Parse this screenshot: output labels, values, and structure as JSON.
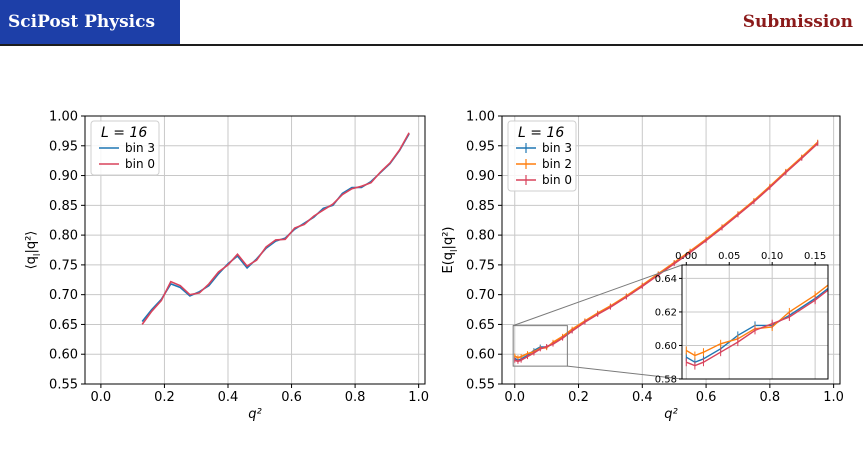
{
  "header": {
    "journal": "SciPost Physics",
    "section": "Submission"
  },
  "chart_data": [
    {
      "type": "line",
      "xlabel": "q²",
      "ylabel": "⟨q_l|q²⟩",
      "xlim": [
        -0.05,
        1.02
      ],
      "ylim": [
        0.55,
        1.0
      ],
      "xticks": [
        "0.0",
        "0.2",
        "0.4",
        "0.6",
        "0.8",
        "1.0"
      ],
      "yticks": [
        "0.55",
        "0.60",
        "0.65",
        "0.70",
        "0.75",
        "0.80",
        "0.85",
        "0.90",
        "0.95",
        "1.00"
      ],
      "grid": true,
      "legend_title": "L = 16",
      "legend_position": "top-left",
      "series": [
        {
          "name": "bin 3",
          "color": "#1f77b4",
          "x": [
            0.13,
            0.16,
            0.19,
            0.22,
            0.25,
            0.28,
            0.31,
            0.34,
            0.37,
            0.4,
            0.43,
            0.46,
            0.49,
            0.52,
            0.55,
            0.58,
            0.61,
            0.64,
            0.67,
            0.7,
            0.73,
            0.76,
            0.79,
            0.82,
            0.85,
            0.88,
            0.91,
            0.94,
            0.97
          ],
          "values": [
            0.655,
            0.675,
            0.692,
            0.718,
            0.712,
            0.698,
            0.705,
            0.715,
            0.735,
            0.752,
            0.765,
            0.745,
            0.76,
            0.778,
            0.79,
            0.795,
            0.81,
            0.82,
            0.83,
            0.845,
            0.85,
            0.87,
            0.88,
            0.88,
            0.89,
            0.905,
            0.92,
            0.942,
            0.97
          ]
        },
        {
          "name": "bin 0",
          "color": "#d9435c",
          "x": [
            0.13,
            0.16,
            0.19,
            0.22,
            0.25,
            0.28,
            0.31,
            0.34,
            0.37,
            0.4,
            0.43,
            0.46,
            0.49,
            0.52,
            0.55,
            0.58,
            0.61,
            0.64,
            0.67,
            0.7,
            0.73,
            0.76,
            0.79,
            0.82,
            0.85,
            0.88,
            0.91,
            0.94,
            0.97
          ],
          "values": [
            0.65,
            0.672,
            0.69,
            0.722,
            0.715,
            0.7,
            0.703,
            0.718,
            0.738,
            0.75,
            0.768,
            0.748,
            0.758,
            0.78,
            0.792,
            0.793,
            0.812,
            0.818,
            0.832,
            0.842,
            0.852,
            0.868,
            0.878,
            0.882,
            0.888,
            0.906,
            0.921,
            0.943,
            0.972
          ]
        }
      ]
    },
    {
      "type": "line",
      "xlabel": "q²",
      "ylabel": "E(q_l|q²)",
      "xlim": [
        -0.04,
        1.02
      ],
      "ylim": [
        0.55,
        1.0
      ],
      "xticks": [
        "0.0",
        "0.2",
        "0.4",
        "0.6",
        "0.8",
        "1.0"
      ],
      "yticks": [
        "0.55",
        "0.60",
        "0.65",
        "0.70",
        "0.75",
        "0.80",
        "0.85",
        "0.90",
        "0.95",
        "1.00"
      ],
      "grid": true,
      "legend_title": "L = 16",
      "legend_position": "top-left",
      "series": [
        {
          "name": "bin 3",
          "color": "#1f77b4",
          "x": [
            0.0,
            0.01,
            0.02,
            0.04,
            0.06,
            0.08,
            0.1,
            0.12,
            0.15,
            0.18,
            0.22,
            0.26,
            0.3,
            0.35,
            0.4,
            0.45,
            0.5,
            0.55,
            0.6,
            0.65,
            0.7,
            0.75,
            0.8,
            0.85,
            0.9,
            0.95
          ],
          "values": [
            0.593,
            0.59,
            0.592,
            0.598,
            0.606,
            0.612,
            0.612,
            0.618,
            0.628,
            0.64,
            0.655,
            0.668,
            0.68,
            0.697,
            0.715,
            0.734,
            0.753,
            0.772,
            0.792,
            0.813,
            0.835,
            0.857,
            0.881,
            0.906,
            0.93,
            0.955
          ]
        },
        {
          "name": "bin 2",
          "color": "#ff7f0e",
          "x": [
            0.0,
            0.01,
            0.02,
            0.04,
            0.06,
            0.08,
            0.1,
            0.12,
            0.15,
            0.18,
            0.22,
            0.26,
            0.3,
            0.35,
            0.4,
            0.45,
            0.5,
            0.55,
            0.6,
            0.65,
            0.7,
            0.75,
            0.8,
            0.85,
            0.9,
            0.95
          ],
          "values": [
            0.597,
            0.594,
            0.596,
            0.601,
            0.604,
            0.61,
            0.611,
            0.62,
            0.63,
            0.642,
            0.656,
            0.669,
            0.681,
            0.698,
            0.716,
            0.735,
            0.754,
            0.773,
            0.793,
            0.814,
            0.836,
            0.858,
            0.882,
            0.907,
            0.931,
            0.956
          ]
        },
        {
          "name": "bin 0",
          "color": "#d9435c",
          "x": [
            0.0,
            0.01,
            0.02,
            0.04,
            0.06,
            0.08,
            0.1,
            0.12,
            0.15,
            0.18,
            0.22,
            0.26,
            0.3,
            0.35,
            0.4,
            0.45,
            0.5,
            0.55,
            0.6,
            0.65,
            0.7,
            0.75,
            0.8,
            0.85,
            0.9,
            0.95
          ],
          "values": [
            0.59,
            0.588,
            0.59,
            0.596,
            0.602,
            0.609,
            0.613,
            0.617,
            0.627,
            0.639,
            0.654,
            0.667,
            0.679,
            0.696,
            0.714,
            0.733,
            0.752,
            0.771,
            0.791,
            0.812,
            0.834,
            0.856,
            0.88,
            0.905,
            0.929,
            0.954
          ]
        }
      ],
      "inset": {
        "xlim": [
          -0.005,
          0.165
        ],
        "ylim": [
          0.58,
          0.648
        ],
        "xticks": [
          "0.00",
          "0.05",
          "0.10",
          "0.15"
        ],
        "yticks": [
          "0.58",
          "0.60",
          "0.62",
          "0.64"
        ]
      }
    }
  ]
}
